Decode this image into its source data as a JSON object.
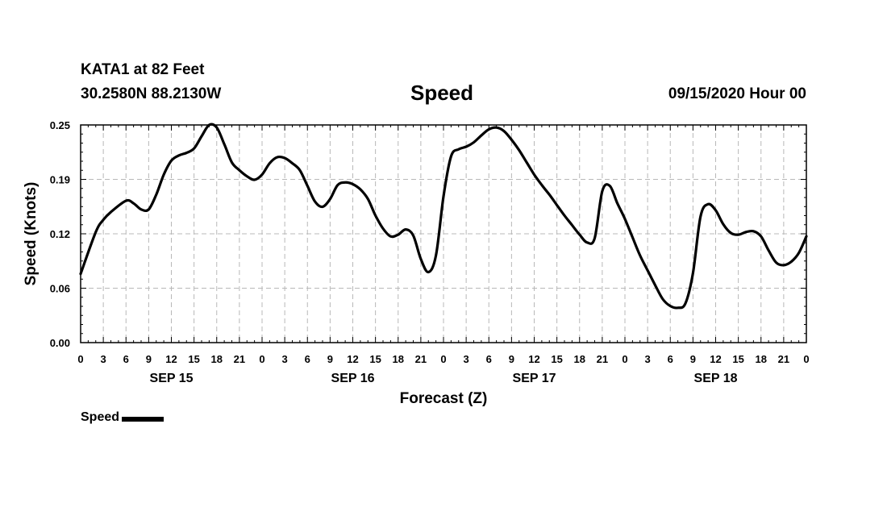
{
  "header": {
    "station": "KATA1 at 82 Feet",
    "coords": "30.2580N 88.2130W",
    "title": "Speed",
    "stamp": "09/15/2020 Hour 00"
  },
  "legend": {
    "label": "Speed"
  },
  "chart_data": {
    "type": "line",
    "title": "Speed",
    "xlabel": "Forecast (Z)",
    "ylabel": "Speed (Knots)",
    "x_unit": "forecast hour",
    "xlim": [
      0,
      96
    ],
    "ylim": [
      0,
      0.25
    ],
    "y_ticks": [
      "0.00",
      "0.06",
      "0.12",
      "0.19",
      "0.25"
    ],
    "x_tick_labels": [
      "0",
      "3",
      "6",
      "9",
      "12",
      "15",
      "18",
      "21",
      "0",
      "3",
      "6",
      "9",
      "12",
      "15",
      "18",
      "21",
      "0",
      "3",
      "6",
      "9",
      "12",
      "15",
      "18",
      "21",
      "0",
      "3",
      "6",
      "9",
      "12",
      "15",
      "18",
      "21",
      "0"
    ],
    "day_labels": [
      {
        "label": "SEP 15",
        "hour": 12
      },
      {
        "label": "SEP 16",
        "hour": 36
      },
      {
        "label": "SEP 17",
        "hour": 60
      },
      {
        "label": "SEP 18",
        "hour": 84
      }
    ],
    "grid": true,
    "legend_position": "bottom-left",
    "line_color": "#000000",
    "series": [
      {
        "name": "Speed",
        "x": [
          0,
          2,
          3,
          4,
          6,
          7,
          8,
          9,
          10,
          11,
          12,
          13,
          14,
          15,
          16,
          17,
          18,
          19,
          20,
          21,
          22,
          23,
          24,
          25,
          26,
          27,
          28,
          29,
          30,
          31,
          32,
          33,
          34,
          35,
          36,
          37,
          38,
          39,
          40,
          41,
          42,
          43,
          44,
          45,
          46,
          47,
          48,
          49,
          50,
          51,
          52,
          53,
          54,
          55,
          56,
          57,
          58,
          59,
          60,
          61,
          62,
          63,
          64,
          65,
          66,
          67,
          68,
          69,
          70,
          71,
          72,
          73,
          74,
          75,
          76,
          77,
          78,
          79,
          80,
          81,
          82,
          83,
          84,
          85,
          86,
          87,
          88,
          89,
          90,
          91,
          92,
          93,
          94,
          95,
          96
        ],
        "y": [
          0.079,
          0.127,
          0.141,
          0.15,
          0.163,
          0.16,
          0.153,
          0.153,
          0.17,
          0.193,
          0.209,
          0.215,
          0.218,
          0.223,
          0.237,
          0.25,
          0.247,
          0.228,
          0.207,
          0.198,
          0.191,
          0.187,
          0.193,
          0.206,
          0.213,
          0.212,
          0.206,
          0.198,
          0.18,
          0.162,
          0.156,
          0.165,
          0.181,
          0.184,
          0.182,
          0.176,
          0.165,
          0.146,
          0.131,
          0.122,
          0.124,
          0.13,
          0.123,
          0.096,
          0.081,
          0.1,
          0.168,
          0.214,
          0.222,
          0.225,
          0.23,
          0.238,
          0.245,
          0.247,
          0.243,
          0.233,
          0.221,
          0.207,
          0.193,
          0.181,
          0.17,
          0.158,
          0.146,
          0.135,
          0.124,
          0.115,
          0.12,
          0.174,
          0.18,
          0.16,
          0.142,
          0.121,
          0.1,
          0.083,
          0.066,
          0.05,
          0.042,
          0.04,
          0.045,
          0.08,
          0.145,
          0.159,
          0.152,
          0.136,
          0.126,
          0.124,
          0.127,
          0.128,
          0.122,
          0.106,
          0.092,
          0.089,
          0.093,
          0.103,
          0.122
        ]
      }
    ]
  }
}
